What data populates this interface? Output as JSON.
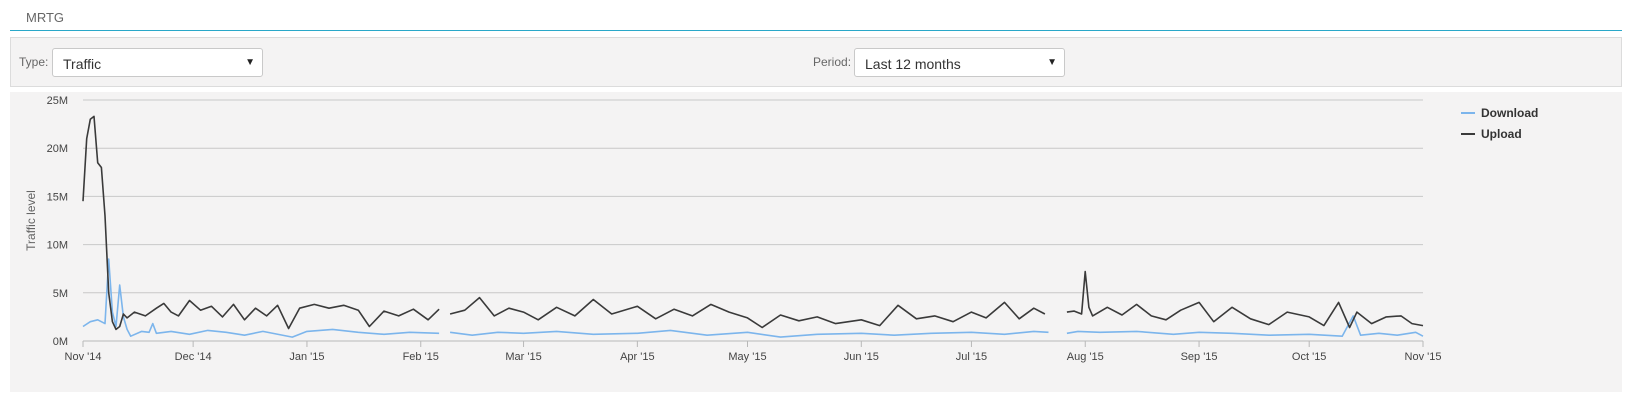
{
  "header": {
    "title": "MRTG"
  },
  "filters": {
    "type_label": "Type:",
    "type_value": "Traffic",
    "period_label": "Period:",
    "period_value": "Last 12 months"
  },
  "icons": {
    "dropdown": "triangle-down-icon"
  },
  "colors": {
    "download": "#7cb5ec",
    "upload": "#3a3a3a",
    "accent": "#2aa8c9"
  },
  "chart_data": {
    "type": "line",
    "title": "",
    "xlabel": "",
    "ylabel": "Traffic level",
    "ylim": [
      0,
      25
    ],
    "y_ticks": [
      0,
      5,
      10,
      15,
      20,
      25
    ],
    "y_tick_labels": [
      "0M",
      "5M",
      "10M",
      "15M",
      "20M",
      "25M"
    ],
    "x_range": [
      "2014-11-01",
      "2015-11-01"
    ],
    "x_ticks": [
      "2014-11-01",
      "2014-12-01",
      "2015-01-01",
      "2015-02-01",
      "2015-03-01",
      "2015-04-01",
      "2015-05-01",
      "2015-06-01",
      "2015-07-01",
      "2015-08-01",
      "2015-09-01",
      "2015-10-01",
      "2015-11-01"
    ],
    "x_tick_labels": [
      "Nov '14",
      "Dec '14",
      "Jan '15",
      "Feb '15",
      "Mar '15",
      "Apr '15",
      "May '15",
      "Jun '15",
      "Jul '15",
      "Aug '15",
      "Sep '15",
      "Oct '15",
      "Nov '15"
    ],
    "grid": true,
    "legend_position": "top-right",
    "series": [
      {
        "name": "Download",
        "points": [
          [
            "2014-11-01",
            1.5
          ],
          [
            "2014-11-03",
            2.0
          ],
          [
            "2014-11-05",
            2.2
          ],
          [
            "2014-11-07",
            1.8
          ],
          [
            "2014-11-08",
            8.5
          ],
          [
            "2014-11-09",
            3.0
          ],
          [
            "2014-11-10",
            1.5
          ],
          [
            "2014-11-11",
            5.8
          ],
          [
            "2014-11-12",
            2.5
          ],
          [
            "2014-11-13",
            1.2
          ],
          [
            "2014-11-14",
            0.5
          ],
          [
            "2014-11-17",
            1.0
          ],
          [
            "2014-11-19",
            0.9
          ],
          [
            "2014-11-20",
            1.8
          ],
          [
            "2014-11-21",
            0.8
          ],
          [
            "2014-11-25",
            1.0
          ],
          [
            "2014-11-30",
            0.7
          ],
          [
            "2014-12-05",
            1.1
          ],
          [
            "2014-12-10",
            0.9
          ],
          [
            "2014-12-15",
            0.6
          ],
          [
            "2014-12-20",
            1.0
          ],
          [
            "2014-12-28",
            0.4
          ],
          [
            "2015-01-01",
            1.0
          ],
          [
            "2015-01-08",
            1.2
          ],
          [
            "2015-01-15",
            0.9
          ],
          [
            "2015-01-22",
            0.7
          ],
          [
            "2015-01-29",
            0.9
          ],
          [
            "2015-02-06",
            0.8
          ],
          [
            "2015-02-07",
            null
          ],
          [
            "2015-02-09",
            0.9
          ],
          [
            "2015-02-15",
            0.6
          ],
          [
            "2015-02-22",
            0.9
          ],
          [
            "2015-03-01",
            0.8
          ],
          [
            "2015-03-10",
            1.0
          ],
          [
            "2015-03-20",
            0.7
          ],
          [
            "2015-04-01",
            0.8
          ],
          [
            "2015-04-10",
            1.1
          ],
          [
            "2015-04-20",
            0.6
          ],
          [
            "2015-05-01",
            0.9
          ],
          [
            "2015-05-10",
            0.4
          ],
          [
            "2015-05-20",
            0.7
          ],
          [
            "2015-06-01",
            0.8
          ],
          [
            "2015-06-10",
            0.6
          ],
          [
            "2015-06-20",
            0.8
          ],
          [
            "2015-07-01",
            0.9
          ],
          [
            "2015-07-10",
            0.7
          ],
          [
            "2015-07-18",
            1.0
          ],
          [
            "2015-07-22",
            0.9
          ],
          [
            "2015-07-23",
            null
          ],
          [
            "2015-07-27",
            0.8
          ],
          [
            "2015-07-30",
            1.0
          ],
          [
            "2015-08-05",
            0.9
          ],
          [
            "2015-08-15",
            1.0
          ],
          [
            "2015-08-25",
            0.7
          ],
          [
            "2015-09-01",
            0.9
          ],
          [
            "2015-09-10",
            0.8
          ],
          [
            "2015-09-20",
            0.6
          ],
          [
            "2015-10-01",
            0.7
          ],
          [
            "2015-10-10",
            0.5
          ],
          [
            "2015-10-13",
            2.6
          ],
          [
            "2015-10-15",
            0.6
          ],
          [
            "2015-10-20",
            0.8
          ],
          [
            "2015-10-25",
            0.6
          ],
          [
            "2015-10-30",
            0.9
          ],
          [
            "2015-11-01",
            0.5
          ]
        ]
      },
      {
        "name": "Upload",
        "points": [
          [
            "2014-11-01",
            14.5
          ],
          [
            "2014-11-02",
            21.0
          ],
          [
            "2014-11-03",
            23.0
          ],
          [
            "2014-11-04",
            23.3
          ],
          [
            "2014-11-05",
            18.5
          ],
          [
            "2014-11-06",
            18.0
          ],
          [
            "2014-11-07",
            13.0
          ],
          [
            "2014-11-08",
            5.0
          ],
          [
            "2014-11-09",
            2.0
          ],
          [
            "2014-11-10",
            1.2
          ],
          [
            "2014-11-11",
            1.5
          ],
          [
            "2014-11-12",
            2.8
          ],
          [
            "2014-11-13",
            2.4
          ],
          [
            "2014-11-15",
            3.0
          ],
          [
            "2014-11-18",
            2.6
          ],
          [
            "2014-11-21",
            3.4
          ],
          [
            "2014-11-23",
            3.9
          ],
          [
            "2014-11-25",
            3.0
          ],
          [
            "2014-11-27",
            2.6
          ],
          [
            "2014-11-30",
            4.2
          ],
          [
            "2014-12-03",
            3.2
          ],
          [
            "2014-12-06",
            3.6
          ],
          [
            "2014-12-09",
            2.5
          ],
          [
            "2014-12-12",
            3.8
          ],
          [
            "2014-12-15",
            2.2
          ],
          [
            "2014-12-18",
            3.4
          ],
          [
            "2014-12-21",
            2.6
          ],
          [
            "2014-12-24",
            3.7
          ],
          [
            "2014-12-27",
            1.3
          ],
          [
            "2014-12-30",
            3.4
          ],
          [
            "2015-01-03",
            3.8
          ],
          [
            "2015-01-07",
            3.4
          ],
          [
            "2015-01-11",
            3.7
          ],
          [
            "2015-01-15",
            3.2
          ],
          [
            "2015-01-18",
            1.5
          ],
          [
            "2015-01-22",
            3.1
          ],
          [
            "2015-01-26",
            2.6
          ],
          [
            "2015-01-30",
            3.3
          ],
          [
            "2015-02-03",
            2.2
          ],
          [
            "2015-02-06",
            3.3
          ],
          [
            "2015-02-07",
            null
          ],
          [
            "2015-02-09",
            2.8
          ],
          [
            "2015-02-13",
            3.2
          ],
          [
            "2015-02-17",
            4.5
          ],
          [
            "2015-02-21",
            2.6
          ],
          [
            "2015-02-25",
            3.4
          ],
          [
            "2015-03-01",
            3.0
          ],
          [
            "2015-03-05",
            2.2
          ],
          [
            "2015-03-10",
            3.5
          ],
          [
            "2015-03-15",
            2.6
          ],
          [
            "2015-03-20",
            4.3
          ],
          [
            "2015-03-25",
            2.8
          ],
          [
            "2015-04-01",
            3.6
          ],
          [
            "2015-04-06",
            2.3
          ],
          [
            "2015-04-11",
            3.3
          ],
          [
            "2015-04-16",
            2.6
          ],
          [
            "2015-04-21",
            3.8
          ],
          [
            "2015-04-26",
            3.0
          ],
          [
            "2015-05-01",
            2.4
          ],
          [
            "2015-05-05",
            1.4
          ],
          [
            "2015-05-10",
            2.7
          ],
          [
            "2015-05-15",
            2.1
          ],
          [
            "2015-05-20",
            2.5
          ],
          [
            "2015-05-25",
            1.8
          ],
          [
            "2015-06-01",
            2.2
          ],
          [
            "2015-06-06",
            1.6
          ],
          [
            "2015-06-11",
            3.7
          ],
          [
            "2015-06-16",
            2.3
          ],
          [
            "2015-06-21",
            2.6
          ],
          [
            "2015-06-26",
            2.0
          ],
          [
            "2015-07-01",
            3.0
          ],
          [
            "2015-07-05",
            2.4
          ],
          [
            "2015-07-10",
            4.0
          ],
          [
            "2015-07-14",
            2.3
          ],
          [
            "2015-07-18",
            3.4
          ],
          [
            "2015-07-21",
            2.8
          ],
          [
            "2015-07-23",
            null
          ],
          [
            "2015-07-27",
            3.0
          ],
          [
            "2015-07-29",
            3.1
          ],
          [
            "2015-07-31",
            2.8
          ],
          [
            "2015-08-01",
            7.2
          ],
          [
            "2015-08-02",
            3.5
          ],
          [
            "2015-08-03",
            2.6
          ],
          [
            "2015-08-07",
            3.5
          ],
          [
            "2015-08-11",
            2.7
          ],
          [
            "2015-08-15",
            3.8
          ],
          [
            "2015-08-19",
            2.6
          ],
          [
            "2015-08-23",
            2.2
          ],
          [
            "2015-08-27",
            3.2
          ],
          [
            "2015-09-01",
            4.0
          ],
          [
            "2015-09-05",
            2.0
          ],
          [
            "2015-09-10",
            3.5
          ],
          [
            "2015-09-15",
            2.3
          ],
          [
            "2015-09-20",
            1.7
          ],
          [
            "2015-09-25",
            3.0
          ],
          [
            "2015-10-01",
            2.5
          ],
          [
            "2015-10-05",
            1.6
          ],
          [
            "2015-10-09",
            4.0
          ],
          [
            "2015-10-12",
            1.4
          ],
          [
            "2015-10-14",
            3.0
          ],
          [
            "2015-10-18",
            1.8
          ],
          [
            "2015-10-22",
            2.5
          ],
          [
            "2015-10-26",
            2.6
          ],
          [
            "2015-10-29",
            1.8
          ],
          [
            "2015-11-01",
            1.6
          ]
        ]
      }
    ]
  }
}
